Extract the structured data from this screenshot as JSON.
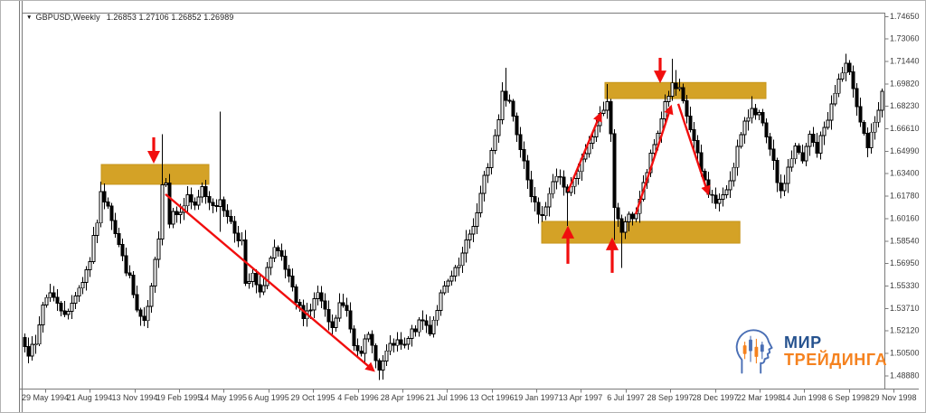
{
  "header": {
    "dropdown_icon": "▼",
    "symbol_period": "GBPUSD,Weekly",
    "ohlc": "1.26853 1.27106 1.26852 1.26989"
  },
  "logo": {
    "line1": "МИР",
    "line2": "ТРЕЙДИНГА",
    "color_primary": "#27538F",
    "color_accent": "#F5821F"
  },
  "chart_data": {
    "type": "candlestick",
    "symbol": "GBPUSD",
    "timeframe": "Weekly",
    "x_axis": {
      "labels": [
        "29 May 1994",
        "21 Aug 1994",
        "13 Nov 1994",
        "19 Feb 1995",
        "14 May 1995",
        "6 Aug 1995",
        "29 Oct 1995",
        "4 Feb 1996",
        "28 Apr 1996",
        "21 Jul 1996",
        "13 Oct 1996",
        "19 Jan 1997",
        "13 Apr 1997",
        "6 Jul 1997",
        "28 Sep 1997",
        "28 Dec 1997",
        "22 Mar 1998",
        "14 Jun 1998",
        "6 Sep 1998",
        "29 Nov 1998"
      ]
    },
    "y_axis": {
      "labels": [
        "1.74650",
        "1.73060",
        "1.71440",
        "1.69820",
        "1.68230",
        "1.66610",
        "1.64990",
        "1.63400",
        "1.61780",
        "1.60160",
        "1.58540",
        "1.56950",
        "1.55330",
        "1.53710",
        "1.52120",
        "1.50500",
        "1.48880"
      ],
      "price_max": 1.7465,
      "price_min": 1.4888
    },
    "bars": {
      "count": 238,
      "first_open": 1.516,
      "seed": 7,
      "anchors": [
        [
          0,
          1.513
        ],
        [
          1,
          1.506
        ],
        [
          3,
          1.51
        ],
        [
          5,
          1.54
        ],
        [
          7,
          1.55
        ],
        [
          9,
          1.539
        ],
        [
          12,
          1.533
        ],
        [
          14,
          1.548
        ],
        [
          16,
          1.557
        ],
        [
          18,
          1.572
        ],
        [
          20,
          1.6
        ],
        [
          21,
          1.618
        ],
        [
          23,
          1.613
        ],
        [
          25,
          1.592
        ],
        [
          27,
          1.573
        ],
        [
          29,
          1.558
        ],
        [
          31,
          1.535
        ],
        [
          33,
          1.525
        ],
        [
          35,
          1.55
        ],
        [
          37,
          1.59
        ],
        [
          38,
          1.628
        ],
        [
          39,
          1.628
        ],
        [
          40,
          1.598
        ],
        [
          41,
          1.61
        ],
        [
          43,
          1.604
        ],
        [
          45,
          1.619
        ],
        [
          47,
          1.608
        ],
        [
          49,
          1.623
        ],
        [
          51,
          1.614
        ],
        [
          54,
          1.612
        ],
        [
          56,
          1.605
        ],
        [
          58,
          1.592
        ],
        [
          60,
          1.585
        ],
        [
          61,
          1.552
        ],
        [
          63,
          1.56
        ],
        [
          65,
          1.546
        ],
        [
          67,
          1.566
        ],
        [
          69,
          1.578
        ],
        [
          71,
          1.572
        ],
        [
          73,
          1.557
        ],
        [
          75,
          1.541
        ],
        [
          77,
          1.533
        ],
        [
          79,
          1.537
        ],
        [
          81,
          1.548
        ],
        [
          83,
          1.533
        ],
        [
          85,
          1.521
        ],
        [
          87,
          1.54
        ],
        [
          89,
          1.535
        ],
        [
          91,
          1.512
        ],
        [
          93,
          1.508
        ],
        [
          95,
          1.516
        ],
        [
          97,
          1.503
        ],
        [
          98,
          1.492
        ],
        [
          100,
          1.505
        ],
        [
          102,
          1.512
        ],
        [
          105,
          1.509
        ],
        [
          107,
          1.52
        ],
        [
          110,
          1.528
        ],
        [
          112,
          1.521
        ],
        [
          115,
          1.546
        ],
        [
          117,
          1.555
        ],
        [
          120,
          1.567
        ],
        [
          122,
          1.583
        ],
        [
          125,
          1.605
        ],
        [
          127,
          1.63
        ],
        [
          129,
          1.65
        ],
        [
          131,
          1.672
        ],
        [
          132,
          1.695
        ],
        [
          133,
          1.688
        ],
        [
          134,
          1.686
        ],
        [
          136,
          1.664
        ],
        [
          138,
          1.645
        ],
        [
          140,
          1.62
        ],
        [
          142,
          1.601
        ],
        [
          144,
          1.612
        ],
        [
          146,
          1.628
        ],
        [
          148,
          1.632
        ],
        [
          150,
          1.618
        ],
        [
          152,
          1.628
        ],
        [
          154,
          1.642
        ],
        [
          156,
          1.655
        ],
        [
          158,
          1.668
        ],
        [
          160,
          1.682
        ],
        [
          161,
          1.687
        ],
        [
          162,
          1.66
        ],
        [
          163,
          1.607
        ],
        [
          165,
          1.592
        ],
        [
          166,
          1.6
        ],
        [
          168,
          1.603
        ],
        [
          169,
          1.606
        ],
        [
          171,
          1.625
        ],
        [
          173,
          1.645
        ],
        [
          175,
          1.663
        ],
        [
          177,
          1.685
        ],
        [
          179,
          1.696
        ],
        [
          181,
          1.692
        ],
        [
          183,
          1.675
        ],
        [
          185,
          1.656
        ],
        [
          187,
          1.635
        ],
        [
          189,
          1.621
        ],
        [
          191,
          1.613
        ],
        [
          193,
          1.616
        ],
        [
          195,
          1.63
        ],
        [
          197,
          1.652
        ],
        [
          199,
          1.668
        ],
        [
          201,
          1.682
        ],
        [
          203,
          1.676
        ],
        [
          205,
          1.658
        ],
        [
          207,
          1.64
        ],
        [
          209,
          1.618
        ],
        [
          211,
          1.638
        ],
        [
          213,
          1.652
        ],
        [
          215,
          1.642
        ],
        [
          217,
          1.661
        ],
        [
          219,
          1.65
        ],
        [
          221,
          1.667
        ],
        [
          223,
          1.682
        ],
        [
          225,
          1.701
        ],
        [
          227,
          1.71
        ],
        [
          229,
          1.697
        ],
        [
          231,
          1.672
        ],
        [
          233,
          1.653
        ],
        [
          235,
          1.668
        ],
        [
          237,
          1.6899
        ]
      ],
      "spikes": [
        {
          "i": 21,
          "high": 1.628
        },
        {
          "i": 38,
          "high": 1.662
        },
        {
          "i": 54,
          "high": 1.678,
          "low": 1.592
        },
        {
          "i": 98,
          "low": 1.4855
        },
        {
          "i": 133,
          "high": 1.7095
        },
        {
          "i": 150,
          "low": 1.596
        },
        {
          "i": 161,
          "high": 1.698
        },
        {
          "i": 163,
          "low": 1.586
        },
        {
          "i": 165,
          "low": 1.566
        },
        {
          "i": 179,
          "high": 1.716
        },
        {
          "i": 180,
          "high": 1.708
        },
        {
          "i": 201,
          "high": 1.689
        },
        {
          "i": 227,
          "high": 1.7195
        }
      ]
    },
    "zones": [
      {
        "name": "supply-zone-1995",
        "i1": 21.25,
        "i2": 51,
        "p_top": 1.6402,
        "p_bottom": 1.626
      },
      {
        "name": "supply-zone-1997",
        "i1": 160.5,
        "i2": 205,
        "p_top": 1.699,
        "p_bottom": 1.6875
      },
      {
        "name": "demand-zone-1997",
        "i1": 143,
        "i2": 197.8,
        "p_top": 1.5994,
        "p_bottom": 1.5838
      }
    ],
    "arrows_vertical": [
      {
        "name": "sell-arrow-zone1",
        "dir": "down",
        "i": 35.75,
        "p_from": 1.6597,
        "p_to": 1.6429
      },
      {
        "name": "sell-arrow-zone2",
        "dir": "down",
        "i": 175.75,
        "p_from": 1.7167,
        "p_to": 1.7005
      },
      {
        "name": "buy-arrow-zone3-a",
        "dir": "up",
        "i": 150.25,
        "p_from": 1.569,
        "p_to": 1.5942
      },
      {
        "name": "buy-arrow-zone3-b",
        "dir": "up",
        "i": 162.5,
        "p_from": 1.5625,
        "p_to": 1.5858
      }
    ],
    "trend_arrows": [
      {
        "name": "downtrend-1995-1996",
        "i1": 39,
        "p1": 1.6189,
        "i2": 96.5,
        "p2": 1.4925
      },
      {
        "name": "rally-into-zone2-first",
        "i1": 150.25,
        "p1": 1.6208,
        "i2": 159.25,
        "p2": 1.6765
      },
      {
        "name": "rally-into-zone2-second",
        "i1": 169,
        "p1": 1.6046,
        "i2": 178.75,
        "p2": 1.6817
      },
      {
        "name": "drop-from-zone2",
        "i1": 180.75,
        "p1": 1.6837,
        "i2": 189,
        "p2": 1.6195
      }
    ],
    "colors": {
      "zone_fill": "#D4A226",
      "zone_stroke": "#C6951B",
      "arrow_red": "#F10E0E",
      "bull_body": "#FFFFFF",
      "bear_body": "#000000",
      "outline": "#000000",
      "axis_line": "#7a7a7a",
      "axis_text": "#3c3c3c"
    }
  }
}
